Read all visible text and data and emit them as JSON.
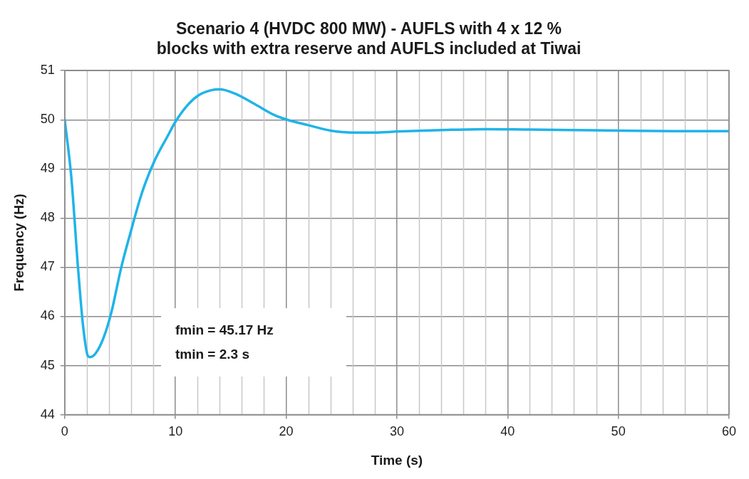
{
  "chart_data": {
    "type": "line",
    "title": "Scenario 4 (HVDC 800 MW) - AUFLS with 4 x 12 %\nblocks with extra reserve and AUFLS included at Tiwai",
    "xlabel": "Time (s)",
    "ylabel": "Frequency (Hz)",
    "x": [
      0,
      0.6,
      1.2,
      1.66,
      2.1,
      2.3,
      2.8,
      3.5,
      4.2,
      5.1,
      5.9,
      7,
      8.1,
      9.3,
      10,
      11.1,
      12.1,
      13.2,
      14,
      15.4,
      17.3,
      18.9,
      20.1,
      22,
      24,
      26,
      28,
      30,
      34,
      38,
      42,
      46,
      50,
      55,
      60
    ],
    "series": [
      {
        "color": "#1fb4e8",
        "values": [
          50.0,
          48.82,
          46.99,
          45.8,
          45.19,
          45.17,
          45.25,
          45.56,
          46.07,
          46.99,
          47.67,
          48.53,
          49.16,
          49.67,
          49.96,
          50.3,
          50.5,
          50.6,
          50.62,
          50.53,
          50.3,
          50.1,
          50.0,
          49.89,
          49.78,
          49.74,
          49.74,
          49.76,
          49.79,
          49.81,
          49.8,
          49.79,
          49.78,
          49.77,
          49.77
        ]
      }
    ],
    "xlim": [
      0,
      60
    ],
    "xticks": [
      0,
      10,
      20,
      30,
      40,
      50,
      60
    ],
    "ylim": [
      44,
      51
    ],
    "yticks": [
      44,
      45,
      46,
      47,
      48,
      49,
      50,
      51
    ],
    "grid": true,
    "legend": false,
    "marker": "none",
    "line_style": "solid",
    "annotations": [
      "fmin = 45.17 Hz",
      "tmin = 2.3 s"
    ]
  }
}
